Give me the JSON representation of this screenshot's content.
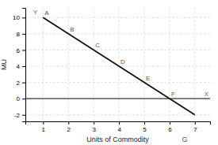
{
  "chart_data": {
    "type": "line",
    "x": [
      1,
      7
    ],
    "values": [
      10,
      -2
    ],
    "color": "#111111",
    "xlabel": "Units of Commodity",
    "ylabel": "MU",
    "xlim": [
      0.3,
      7.6
    ],
    "ylim": [
      -2.8,
      11.2
    ],
    "xticks": [
      1,
      2,
      3,
      4,
      5,
      6,
      7
    ],
    "yticks": [
      -2,
      0,
      2,
      4,
      6,
      8,
      10
    ],
    "grid": true,
    "annotations": [
      {
        "text": "A",
        "x": 1,
        "y": 10
      },
      {
        "text": "B",
        "x": 2,
        "y": 8
      },
      {
        "text": "C",
        "x": 3,
        "y": 6
      },
      {
        "text": "D",
        "x": 4,
        "y": 4
      },
      {
        "text": "E",
        "x": 5,
        "y": 2
      },
      {
        "text": "F",
        "x": 6,
        "y": 0
      },
      {
        "text": "X",
        "x": 7.6,
        "y": 0
      },
      {
        "text": "Y",
        "x": 0.7,
        "y": 11.2
      },
      {
        "text": "G",
        "x": 6.6,
        "y": -2.8
      }
    ]
  }
}
